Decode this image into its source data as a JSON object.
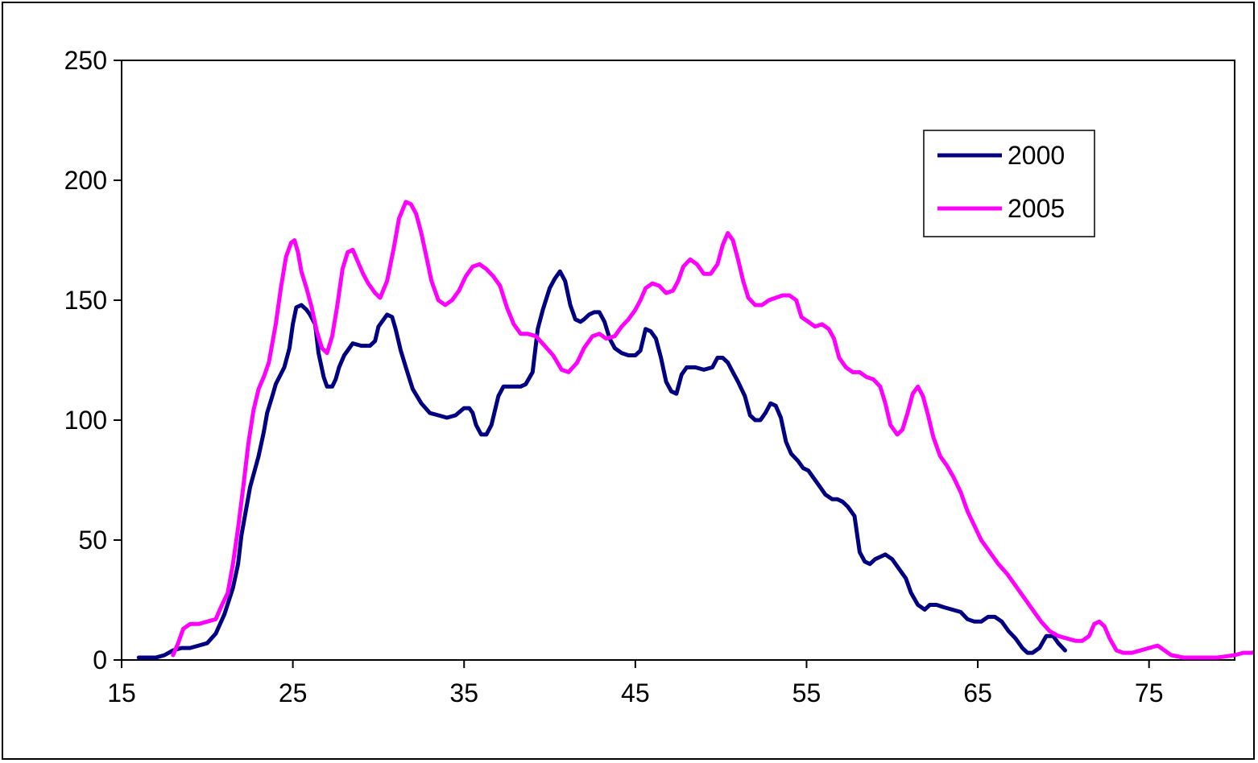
{
  "chart_data": {
    "type": "line",
    "title": "",
    "xlabel": "",
    "ylabel": "",
    "xlim": [
      15,
      80
    ],
    "ylim": [
      0,
      250
    ],
    "x_ticks": [
      "15",
      "25",
      "35",
      "45",
      "55",
      "65",
      "75"
    ],
    "y_ticks": [
      "0",
      "50",
      "100",
      "150",
      "200",
      "250"
    ],
    "grid": false,
    "legend_position": "top-right",
    "series": [
      {
        "name": "2000",
        "color": "#000080",
        "points": [
          [
            16,
            1
          ],
          [
            17,
            1
          ],
          [
            17.5,
            2
          ],
          [
            18,
            4
          ],
          [
            18.5,
            5
          ],
          [
            19,
            5
          ],
          [
            19.5,
            6
          ],
          [
            20,
            7
          ],
          [
            20.5,
            11
          ],
          [
            21,
            19
          ],
          [
            21.5,
            30
          ],
          [
            21.8,
            40
          ],
          [
            22,
            52
          ],
          [
            22.5,
            72
          ],
          [
            23,
            85
          ],
          [
            23.3,
            95
          ],
          [
            23.5,
            103
          ],
          [
            23.8,
            110
          ],
          [
            24,
            115
          ],
          [
            24.5,
            122
          ],
          [
            24.8,
            130
          ],
          [
            25,
            140
          ],
          [
            25.2,
            147
          ],
          [
            25.5,
            148
          ],
          [
            25.8,
            146
          ],
          [
            26,
            144
          ],
          [
            26.3,
            140
          ],
          [
            26.5,
            128
          ],
          [
            26.8,
            118
          ],
          [
            27,
            114
          ],
          [
            27.3,
            114
          ],
          [
            27.5,
            117
          ],
          [
            27.7,
            122
          ],
          [
            28,
            127
          ],
          [
            28.5,
            132
          ],
          [
            29,
            131
          ],
          [
            29.5,
            131
          ],
          [
            29.8,
            133
          ],
          [
            30,
            139
          ],
          [
            30.5,
            144
          ],
          [
            30.8,
            143
          ],
          [
            31,
            138
          ],
          [
            31.3,
            129
          ],
          [
            31.6,
            122
          ],
          [
            32,
            113
          ],
          [
            32.5,
            107
          ],
          [
            33,
            103
          ],
          [
            33.5,
            102
          ],
          [
            34,
            101
          ],
          [
            34.5,
            102
          ],
          [
            35,
            105
          ],
          [
            35.3,
            105
          ],
          [
            35.5,
            103
          ],
          [
            35.7,
            98
          ],
          [
            36,
            94
          ],
          [
            36.3,
            94
          ],
          [
            36.6,
            98
          ],
          [
            37,
            110
          ],
          [
            37.3,
            114
          ],
          [
            37.6,
            114
          ],
          [
            38,
            114
          ],
          [
            38.3,
            114
          ],
          [
            38.6,
            115
          ],
          [
            39,
            120
          ],
          [
            39.3,
            138
          ],
          [
            39.6,
            146
          ],
          [
            40,
            155
          ],
          [
            40.3,
            159
          ],
          [
            40.6,
            162
          ],
          [
            40.9,
            158
          ],
          [
            41.2,
            148
          ],
          [
            41.5,
            142
          ],
          [
            41.8,
            141
          ],
          [
            42,
            142
          ],
          [
            42.3,
            144
          ],
          [
            42.6,
            145
          ],
          [
            42.9,
            145
          ],
          [
            43.2,
            141
          ],
          [
            43.5,
            134
          ],
          [
            43.8,
            130
          ],
          [
            44.2,
            128
          ],
          [
            44.6,
            127
          ],
          [
            45,
            127
          ],
          [
            45.3,
            129
          ],
          [
            45.6,
            138
          ],
          [
            45.9,
            137
          ],
          [
            46.2,
            134
          ],
          [
            46.5,
            126
          ],
          [
            46.8,
            116
          ],
          [
            47.1,
            112
          ],
          [
            47.4,
            111
          ],
          [
            47.7,
            119
          ],
          [
            48,
            122
          ],
          [
            48.5,
            122
          ],
          [
            49,
            121
          ],
          [
            49.5,
            122
          ],
          [
            49.8,
            126
          ],
          [
            50.1,
            126
          ],
          [
            50.4,
            124
          ],
          [
            50.7,
            120
          ],
          [
            51,
            116
          ],
          [
            51.4,
            110
          ],
          [
            51.7,
            102
          ],
          [
            52,
            100
          ],
          [
            52.3,
            100
          ],
          [
            52.6,
            103
          ],
          [
            52.9,
            107
          ],
          [
            53.2,
            106
          ],
          [
            53.5,
            101
          ],
          [
            53.8,
            91
          ],
          [
            54.1,
            86
          ],
          [
            54.5,
            83
          ],
          [
            54.8,
            80
          ],
          [
            55.1,
            79
          ],
          [
            55.5,
            75
          ],
          [
            55.8,
            72
          ],
          [
            56.1,
            69
          ],
          [
            56.5,
            67
          ],
          [
            56.8,
            67
          ],
          [
            57.1,
            66
          ],
          [
            57.4,
            64
          ],
          [
            57.8,
            60
          ],
          [
            58.1,
            45
          ],
          [
            58.4,
            41
          ],
          [
            58.7,
            40
          ],
          [
            59,
            42
          ],
          [
            59.3,
            43
          ],
          [
            59.6,
            44
          ],
          [
            60,
            42
          ],
          [
            60.4,
            38
          ],
          [
            60.8,
            34
          ],
          [
            61.1,
            28
          ],
          [
            61.5,
            23
          ],
          [
            61.9,
            21
          ],
          [
            62.2,
            23
          ],
          [
            62.6,
            23
          ],
          [
            63,
            22
          ],
          [
            63.5,
            21
          ],
          [
            64,
            20
          ],
          [
            64.4,
            17
          ],
          [
            64.8,
            16
          ],
          [
            65.2,
            16
          ],
          [
            65.6,
            18
          ],
          [
            66,
            18
          ],
          [
            66.4,
            16
          ],
          [
            66.8,
            12
          ],
          [
            67.2,
            9
          ],
          [
            67.6,
            5
          ],
          [
            67.9,
            3
          ],
          [
            68.2,
            3
          ],
          [
            68.6,
            5
          ],
          [
            69,
            10
          ],
          [
            69.4,
            10
          ],
          [
            69.7,
            7
          ],
          [
            70.1,
            4
          ]
        ]
      },
      {
        "name": "2005",
        "color": "#FF00FF",
        "points": [
          [
            18,
            2
          ],
          [
            18.3,
            7
          ],
          [
            18.6,
            13
          ],
          [
            19,
            15
          ],
          [
            19.5,
            15
          ],
          [
            20,
            16
          ],
          [
            20.5,
            17
          ],
          [
            20.8,
            22
          ],
          [
            21.2,
            28
          ],
          [
            21.5,
            40
          ],
          [
            21.8,
            55
          ],
          [
            22.1,
            72
          ],
          [
            22.4,
            90
          ],
          [
            22.7,
            104
          ],
          [
            23,
            113
          ],
          [
            23.3,
            118
          ],
          [
            23.6,
            124
          ],
          [
            24,
            140
          ],
          [
            24.3,
            155
          ],
          [
            24.6,
            168
          ],
          [
            24.9,
            174
          ],
          [
            25.1,
            175
          ],
          [
            25.3,
            170
          ],
          [
            25.5,
            162
          ],
          [
            25.8,
            155
          ],
          [
            26.1,
            147
          ],
          [
            26.4,
            137
          ],
          [
            26.7,
            130
          ],
          [
            27,
            128
          ],
          [
            27.3,
            135
          ],
          [
            27.6,
            148
          ],
          [
            27.9,
            163
          ],
          [
            28.2,
            170
          ],
          [
            28.5,
            171
          ],
          [
            28.8,
            166
          ],
          [
            29.1,
            161
          ],
          [
            29.4,
            157
          ],
          [
            29.8,
            153
          ],
          [
            30.1,
            151
          ],
          [
            30.5,
            158
          ],
          [
            30.9,
            172
          ],
          [
            31.2,
            184
          ],
          [
            31.6,
            191
          ],
          [
            31.9,
            190
          ],
          [
            32.2,
            186
          ],
          [
            32.5,
            178
          ],
          [
            32.8,
            168
          ],
          [
            33.1,
            158
          ],
          [
            33.5,
            150
          ],
          [
            33.9,
            148
          ],
          [
            34.3,
            150
          ],
          [
            34.7,
            154
          ],
          [
            35.1,
            160
          ],
          [
            35.5,
            164
          ],
          [
            35.9,
            165
          ],
          [
            36.3,
            163
          ],
          [
            36.7,
            160
          ],
          [
            37.1,
            156
          ],
          [
            37.5,
            147
          ],
          [
            37.9,
            140
          ],
          [
            38.3,
            136
          ],
          [
            38.7,
            136
          ],
          [
            39.2,
            135
          ],
          [
            39.7,
            131
          ],
          [
            40.2,
            127
          ],
          [
            40.7,
            121
          ],
          [
            41.1,
            120
          ],
          [
            41.6,
            124
          ],
          [
            42,
            130
          ],
          [
            42.5,
            135
          ],
          [
            42.9,
            136
          ],
          [
            43.3,
            134
          ],
          [
            43.8,
            135
          ],
          [
            44.2,
            139
          ],
          [
            44.6,
            142
          ],
          [
            45,
            146
          ],
          [
            45.3,
            150
          ],
          [
            45.6,
            155
          ],
          [
            46,
            157
          ],
          [
            46.4,
            156
          ],
          [
            46.8,
            153
          ],
          [
            47.2,
            154
          ],
          [
            47.5,
            158
          ],
          [
            47.8,
            164
          ],
          [
            48.2,
            167
          ],
          [
            48.6,
            165
          ],
          [
            49,
            161
          ],
          [
            49.4,
            161
          ],
          [
            49.8,
            165
          ],
          [
            50.1,
            173
          ],
          [
            50.4,
            178
          ],
          [
            50.7,
            175
          ],
          [
            51,
            167
          ],
          [
            51.3,
            158
          ],
          [
            51.6,
            151
          ],
          [
            52,
            148
          ],
          [
            52.4,
            148
          ],
          [
            52.8,
            150
          ],
          [
            53.2,
            151
          ],
          [
            53.6,
            152
          ],
          [
            54,
            152
          ],
          [
            54.4,
            150
          ],
          [
            54.7,
            143
          ],
          [
            55.1,
            141
          ],
          [
            55.5,
            139
          ],
          [
            55.9,
            140
          ],
          [
            56.3,
            138
          ],
          [
            56.6,
            134
          ],
          [
            56.9,
            126
          ],
          [
            57.3,
            122
          ],
          [
            57.7,
            120
          ],
          [
            58.1,
            120
          ],
          [
            58.5,
            118
          ],
          [
            58.9,
            117
          ],
          [
            59.3,
            114
          ],
          [
            59.6,
            107
          ],
          [
            59.9,
            98
          ],
          [
            60.3,
            94
          ],
          [
            60.6,
            96
          ],
          [
            60.9,
            103
          ],
          [
            61.2,
            111
          ],
          [
            61.5,
            114
          ],
          [
            61.8,
            110
          ],
          [
            62.1,
            102
          ],
          [
            62.4,
            93
          ],
          [
            62.8,
            85
          ],
          [
            63.2,
            81
          ],
          [
            63.6,
            76
          ],
          [
            64,
            70
          ],
          [
            64.4,
            62
          ],
          [
            64.8,
            56
          ],
          [
            65.2,
            50
          ],
          [
            65.7,
            45
          ],
          [
            66.2,
            40
          ],
          [
            66.7,
            36
          ],
          [
            67.2,
            31
          ],
          [
            67.7,
            26
          ],
          [
            68.2,
            21
          ],
          [
            68.7,
            16
          ],
          [
            69.2,
            12
          ],
          [
            69.7,
            10
          ],
          [
            70.2,
            9
          ],
          [
            70.7,
            8
          ],
          [
            71.1,
            8
          ],
          [
            71.5,
            10
          ],
          [
            71.8,
            15
          ],
          [
            72.1,
            16
          ],
          [
            72.4,
            14
          ],
          [
            72.7,
            9
          ],
          [
            73.1,
            4
          ],
          [
            73.5,
            3
          ],
          [
            74,
            3
          ],
          [
            74.5,
            4
          ],
          [
            75,
            5
          ],
          [
            75.5,
            6
          ],
          [
            75.9,
            4
          ],
          [
            76.3,
            2
          ],
          [
            77,
            1
          ],
          [
            78,
            1
          ],
          [
            79,
            1
          ],
          [
            80,
            2
          ],
          [
            80.5,
            3
          ],
          [
            81,
            3
          ],
          [
            81.5,
            4
          ]
        ]
      }
    ]
  }
}
